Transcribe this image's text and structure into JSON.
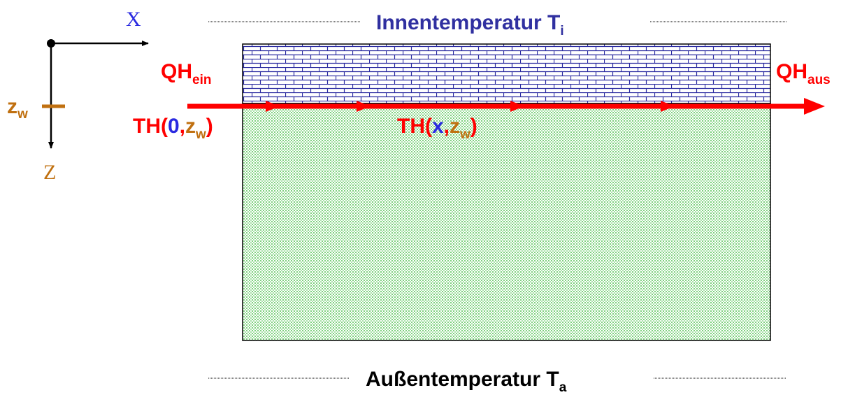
{
  "axes": {
    "x_label": "X",
    "z_label": "Z",
    "zw": {
      "base": "z",
      "sub": "w"
    }
  },
  "top_label": {
    "base": "Innentemperatur T",
    "sub": "i"
  },
  "bottom_label": {
    "base": "Außentemperatur T",
    "sub": "a"
  },
  "flow_in": {
    "base": "QH",
    "sub": "ein"
  },
  "flow_out": {
    "base": "QH",
    "sub": "aus"
  },
  "temp_start": {
    "prefix": "TH(",
    "x": "0",
    "sep": ",",
    "z": "z",
    "sub": "w",
    "suffix": ")"
  },
  "temp_mid": {
    "prefix": "TH(",
    "x": "x",
    "sep": ",",
    "z": "z",
    "sub": "w",
    "suffix": ")"
  }
}
